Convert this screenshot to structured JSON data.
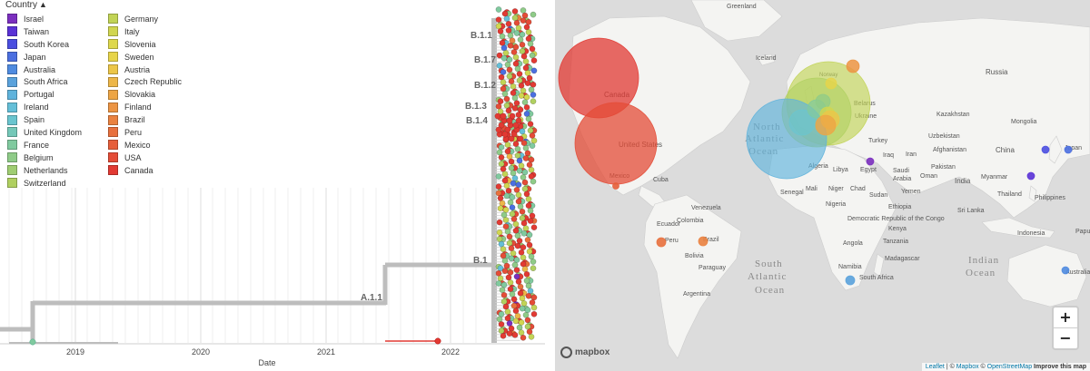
{
  "legend": {
    "title": "Country",
    "columns": [
      [
        {
          "label": "Israel",
          "color": "#7b2fbf"
        },
        {
          "label": "Taiwan",
          "color": "#5a32d6"
        },
        {
          "label": "South Korea",
          "color": "#4a4ee0"
        },
        {
          "label": "Japan",
          "color": "#4b6fe0"
        },
        {
          "label": "Australia",
          "color": "#4f8be0"
        },
        {
          "label": "South Africa",
          "color": "#5aa2dc"
        },
        {
          "label": "Portugal",
          "color": "#5fb3dc"
        },
        {
          "label": "Ireland",
          "color": "#64bfd8"
        },
        {
          "label": "Spain",
          "color": "#6ac5cf"
        },
        {
          "label": "United Kingdom",
          "color": "#74c8b8"
        },
        {
          "label": "France",
          "color": "#80ca9f"
        },
        {
          "label": "Belgium",
          "color": "#8fcb88"
        },
        {
          "label": "Netherlands",
          "color": "#9fcd72"
        },
        {
          "label": "Switzerland",
          "color": "#b0d060"
        }
      ],
      [
        {
          "label": "Germany",
          "color": "#c2d456"
        },
        {
          "label": "Italy",
          "color": "#d1d64f"
        },
        {
          "label": "Slovenia",
          "color": "#ded84b"
        },
        {
          "label": "Sweden",
          "color": "#e7d449"
        },
        {
          "label": "Austria",
          "color": "#ecc648"
        },
        {
          "label": "Czech Republic",
          "color": "#edb647"
        },
        {
          "label": "Slovakia",
          "color": "#eda545"
        },
        {
          "label": "Finland",
          "color": "#ec9443"
        },
        {
          "label": "Brazil",
          "color": "#ea8240"
        },
        {
          "label": "Peru",
          "color": "#e8703d"
        },
        {
          "label": "Mexico",
          "color": "#e65e3a"
        },
        {
          "label": "USA",
          "color": "#e44c37"
        },
        {
          "label": "Canada",
          "color": "#e23a33"
        }
      ]
    ]
  },
  "tree": {
    "x_axis_title": "Date",
    "years": [
      "2019",
      "2020",
      "2021",
      "2022"
    ],
    "clade_labels": [
      "B.1.1",
      "B.1.7",
      "B.1.2",
      "B.1.3",
      "B.1.4",
      "B.1",
      "A.1.1"
    ]
  },
  "map": {
    "labels": {
      "greenland": "Greenland",
      "iceland": "Iceland",
      "russia": "Russia",
      "norway": "Norway",
      "belarus": "Belarus",
      "ukraine": "Ukraine",
      "kazakhstan": "Kazakhstan",
      "mongolia": "Mongolia",
      "uzbekistan": "Uzbekistan",
      "turkey": "Turkey",
      "iraq": "Iraq",
      "iran": "Iran",
      "afghanistan": "Afghanistan",
      "china": "China",
      "japan": "Japan",
      "pakistan": "Pakistan",
      "egypt": "Egypt",
      "libya": "Libya",
      "algeria": "Algeria",
      "saudi": "Saudi",
      "arabia": "Arabia",
      "oman": "Oman",
      "yemen": "Yemen",
      "india": "India",
      "myanmar": "Myanmar",
      "thailand": "Thailand",
      "philippines": "Philippines",
      "sri_lanka": "Sri Lanka",
      "indonesia": "Indonesia",
      "papua": "Papua New",
      "mali": "Mali",
      "niger": "Niger",
      "chad": "Chad",
      "sudan": "Sudan",
      "ethiopia": "Ethiopia",
      "senegal": "Senegal",
      "nigeria": "Nigeria",
      "kenya": "Kenya",
      "tanzania": "Tanzania",
      "drc": "Democratic Republic of the Congo",
      "angola": "Angola",
      "namibia": "Namibia",
      "madagascar": "Madagascar",
      "south_africa": "South Africa",
      "canada": "Canada",
      "united_states": "United States",
      "mexico": "Mexico",
      "cuba": "Cuba",
      "venezuela": "Venezuela",
      "colombia": "Colombia",
      "ecuador": "Ecuador",
      "peru": "Peru",
      "brazil": "Brazil",
      "bolivia": "Bolivia",
      "paraguay": "Paraguay",
      "argentina": "Argentina",
      "australia": "Australia",
      "north": "North",
      "atlantic": "Atlantic",
      "ocean": "Ocean",
      "south": "South",
      "indian": "Indian"
    },
    "zoom_in": "+",
    "zoom_out": "−",
    "logo": "mapbox",
    "attribution": {
      "leaflet": "Leaflet",
      "sep1": " | © ",
      "mapbox": "Mapbox",
      "sep2": " © ",
      "osm": "OpenStreetMap",
      "improve": " Improve this map"
    },
    "colors": {
      "water": "#dcdcdc",
      "land": "#f4f4f2",
      "border": "#c8c8c8"
    }
  }
}
